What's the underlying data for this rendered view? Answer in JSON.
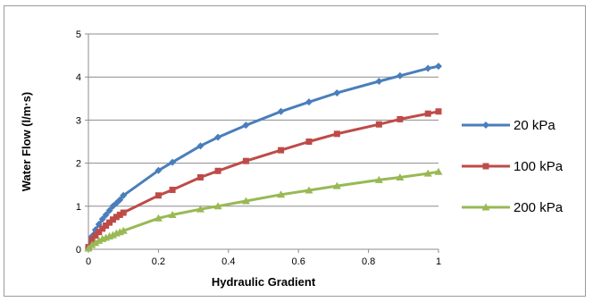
{
  "chart_data": {
    "type": "line",
    "title": "",
    "xlabel": "Hydraulic Gradient",
    "ylabel": "Water Flow (l/m·s)",
    "xlim": [
      0,
      1
    ],
    "ylim": [
      0,
      5
    ],
    "xticks": [
      "0",
      "0.2",
      "0.4",
      "0.6",
      "0.8",
      "1"
    ],
    "yticks": [
      "0",
      "1",
      "2",
      "3",
      "4",
      "5"
    ],
    "grid": "horizontal",
    "legend_position": "right",
    "series": [
      {
        "name": "20 kPa",
        "color": "#4a7ebb",
        "marker": "diamond",
        "x": [
          0,
          0.01,
          0.02,
          0.03,
          0.04,
          0.05,
          0.06,
          0.07,
          0.08,
          0.09,
          0.1,
          0.2,
          0.24,
          0.32,
          0.37,
          0.45,
          0.55,
          0.63,
          0.71,
          0.83,
          0.89,
          0.97,
          1.0
        ],
        "y": [
          0.05,
          0.3,
          0.45,
          0.58,
          0.7,
          0.8,
          0.9,
          1.0,
          1.07,
          1.15,
          1.25,
          1.83,
          2.02,
          2.4,
          2.6,
          2.88,
          3.2,
          3.42,
          3.63,
          3.9,
          4.03,
          4.2,
          4.25
        ]
      },
      {
        "name": "100 kPa",
        "color": "#be4b48",
        "marker": "square",
        "x": [
          0,
          0.01,
          0.02,
          0.03,
          0.04,
          0.05,
          0.06,
          0.07,
          0.08,
          0.09,
          0.1,
          0.2,
          0.24,
          0.32,
          0.37,
          0.45,
          0.55,
          0.63,
          0.71,
          0.83,
          0.89,
          0.97,
          1.0
        ],
        "y": [
          0.05,
          0.22,
          0.32,
          0.4,
          0.48,
          0.55,
          0.62,
          0.69,
          0.75,
          0.8,
          0.85,
          1.25,
          1.38,
          1.67,
          1.82,
          2.05,
          2.3,
          2.5,
          2.68,
          2.9,
          3.02,
          3.15,
          3.2
        ]
      },
      {
        "name": "200 kPa",
        "color": "#98b954",
        "marker": "triangle",
        "x": [
          0,
          0.01,
          0.02,
          0.03,
          0.04,
          0.05,
          0.06,
          0.07,
          0.08,
          0.09,
          0.1,
          0.2,
          0.24,
          0.32,
          0.37,
          0.45,
          0.55,
          0.63,
          0.71,
          0.83,
          0.89,
          0.97,
          1.0
        ],
        "y": [
          0.02,
          0.1,
          0.15,
          0.2,
          0.24,
          0.27,
          0.3,
          0.33,
          0.37,
          0.4,
          0.43,
          0.72,
          0.8,
          0.93,
          1.0,
          1.12,
          1.27,
          1.37,
          1.47,
          1.61,
          1.67,
          1.76,
          1.8
        ]
      }
    ]
  }
}
